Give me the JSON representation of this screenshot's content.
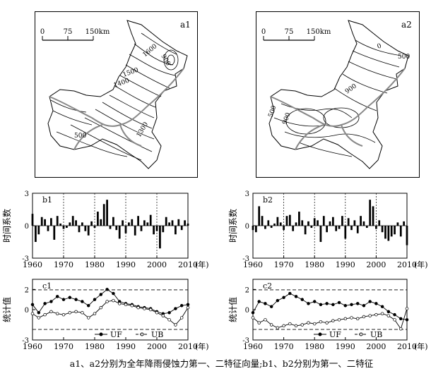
{
  "maps": [
    {
      "id": "a1",
      "scale": {
        "ticks": [
          "0",
          "75",
          "150km"
        ]
      },
      "contour_labels": [
        "1600",
        "1500",
        "1400",
        "900",
        "500",
        "1300"
      ]
    },
    {
      "id": "a2",
      "scale": {
        "ticks": [
          "0",
          "75",
          "150km"
        ]
      },
      "contour_labels": [
        "0",
        "500",
        "900",
        "500",
        "900"
      ]
    }
  ],
  "chart_data": [
    {
      "id": "b1",
      "type": "bar",
      "ylabel": "时间系数",
      "yticks": [
        "3",
        "0",
        "-3"
      ],
      "ylim": [
        -3,
        3
      ],
      "xticks": [
        "1960",
        "1970",
        "1980",
        "1990",
        "2000",
        "2010"
      ],
      "xunit": "(年)",
      "x": [
        1960,
        1961,
        1962,
        1963,
        1964,
        1965,
        1966,
        1967,
        1968,
        1969,
        1970,
        1971,
        1972,
        1973,
        1974,
        1975,
        1976,
        1977,
        1978,
        1979,
        1980,
        1981,
        1982,
        1983,
        1984,
        1985,
        1986,
        1987,
        1988,
        1989,
        1990,
        1991,
        1992,
        1993,
        1994,
        1995,
        1996,
        1997,
        1998,
        1999,
        2000,
        2001,
        2002,
        2003,
        2004,
        2005,
        2006,
        2007,
        2008,
        2009,
        2010
      ],
      "values": [
        1.1,
        -1.5,
        -0.8,
        0.8,
        0.6,
        -0.5,
        0.7,
        -1.3,
        0.9,
        0.2,
        -0.3,
        -0.2,
        0.3,
        0.9,
        0.5,
        -0.6,
        0.3,
        -0.5,
        -0.9,
        0.4,
        -0.2,
        1.3,
        0.6,
        2.0,
        2.4,
        -0.3,
        0.8,
        -0.4,
        -1.2,
        0.5,
        -0.7,
        0.3,
        0.6,
        -0.9,
        0.9,
        -0.5,
        0.5,
        0.3,
        1.0,
        -0.8,
        -0.5,
        -2.1,
        -0.6,
        0.8,
        0.3,
        0.5,
        -0.8,
        0.6,
        -0.4,
        0.5,
        0.2
      ]
    },
    {
      "id": "b2",
      "type": "bar",
      "ylabel": "时间系数",
      "yticks": [
        "3",
        "0",
        "-3"
      ],
      "ylim": [
        -3,
        3
      ],
      "xticks": [
        "1960",
        "1970",
        "1980",
        "1990",
        "2000",
        "2010"
      ],
      "xunit": "(年)",
      "x": [
        1960,
        1961,
        1962,
        1963,
        1964,
        1965,
        1966,
        1967,
        1968,
        1969,
        1970,
        1971,
        1972,
        1973,
        1974,
        1975,
        1976,
        1977,
        1978,
        1979,
        1980,
        1981,
        1982,
        1983,
        1984,
        1985,
        1986,
        1987,
        1988,
        1989,
        1990,
        1991,
        1992,
        1993,
        1994,
        1995,
        1996,
        1997,
        1998,
        1999,
        2000,
        2001,
        2002,
        2003,
        2004,
        2005,
        2006,
        2007,
        2008,
        2009,
        2010
      ],
      "values": [
        -0.4,
        -0.6,
        1.8,
        0.9,
        -0.3,
        0.5,
        -0.2,
        0.2,
        0.8,
        0.3,
        -0.4,
        0.9,
        1.0,
        -0.5,
        0.3,
        1.3,
        0.5,
        -0.8,
        0.4,
        -0.2,
        0.7,
        0.5,
        -1.5,
        0.9,
        -0.6,
        0.4,
        0.8,
        -0.5,
        -0.3,
        0.9,
        -1.2,
        0.7,
        -0.4,
        0.5,
        -0.7,
        0.9,
        0.4,
        -0.2,
        2.4,
        1.8,
        -0.3,
        0.5,
        -0.6,
        -1.2,
        -1.4,
        -1.0,
        -0.8,
        0.3,
        -1.0,
        0.4,
        -1.8
      ]
    },
    {
      "id": "c1",
      "type": "line",
      "ylabel": "统计值",
      "yticks": [
        "2",
        "0",
        "-3"
      ],
      "ylim": [
        -3,
        3
      ],
      "significance": [
        1.96,
        -1.96
      ],
      "xticks": [
        "1960",
        "1970",
        "1980",
        "1990",
        "2000",
        "2010"
      ],
      "xunit": "(年)",
      "legend": [
        "UF",
        "UB"
      ],
      "series": [
        {
          "name": "UF",
          "x": [
            1960,
            1962,
            1964,
            1966,
            1968,
            1970,
            1972,
            1974,
            1976,
            1978,
            1980,
            1982,
            1984,
            1986,
            1988,
            1990,
            1992,
            1994,
            1996,
            1998,
            2000,
            2002,
            2004,
            2006,
            2008,
            2010
          ],
          "values": [
            0.5,
            -0.3,
            0.6,
            0.8,
            1.3,
            1.0,
            1.2,
            1.0,
            0.8,
            0.4,
            1.0,
            1.5,
            2.0,
            1.6,
            0.8,
            0.6,
            0.5,
            0.3,
            0.2,
            0.1,
            -0.2,
            -0.4,
            -0.3,
            0.1,
            0.4,
            0.5
          ]
        },
        {
          "name": "UB",
          "x": [
            1960,
            1962,
            1964,
            1966,
            1968,
            1970,
            1972,
            1974,
            1976,
            1978,
            1980,
            1982,
            1984,
            1986,
            1988,
            1990,
            1992,
            1994,
            1996,
            1998,
            2000,
            2002,
            2004,
            2006,
            2008,
            2010
          ],
          "values": [
            -0.4,
            -0.8,
            -0.5,
            -0.2,
            -0.4,
            -0.5,
            -0.3,
            -0.2,
            -0.3,
            -0.8,
            -0.4,
            0.2,
            0.8,
            0.9,
            0.6,
            0.5,
            0.4,
            0.2,
            0.1,
            0.0,
            -0.3,
            -0.6,
            -1.0,
            -1.5,
            -0.8,
            0.2
          ]
        }
      ]
    },
    {
      "id": "c2",
      "type": "line",
      "ylabel": "统计值",
      "yticks": [
        "2",
        "0",
        "-3"
      ],
      "ylim": [
        -3,
        3
      ],
      "significance": [
        1.96,
        -1.96
      ],
      "xticks": [
        "1960",
        "1970",
        "1980",
        "1990",
        "2000",
        "2010"
      ],
      "xunit": "(年)",
      "legend": [
        "UF",
        "UB"
      ],
      "series": [
        {
          "name": "UF",
          "x": [
            1960,
            1962,
            1964,
            1966,
            1968,
            1970,
            1972,
            1974,
            1976,
            1978,
            1980,
            1982,
            1984,
            1986,
            1988,
            1990,
            1992,
            1994,
            1996,
            1998,
            2000,
            2002,
            2004,
            2006,
            2008,
            2010
          ],
          "values": [
            -0.3,
            0.8,
            0.6,
            0.3,
            0.9,
            1.2,
            1.6,
            1.3,
            1.0,
            0.6,
            0.8,
            0.5,
            0.6,
            0.5,
            0.7,
            0.4,
            0.5,
            0.6,
            0.4,
            0.8,
            0.6,
            0.3,
            -0.2,
            -0.5,
            -0.9,
            -1.0
          ]
        },
        {
          "name": "UB",
          "x": [
            1960,
            1962,
            1964,
            1966,
            1968,
            1970,
            1972,
            1974,
            1976,
            1978,
            1980,
            1982,
            1984,
            1986,
            1988,
            1990,
            1992,
            1994,
            1996,
            1998,
            2000,
            2002,
            2004,
            2006,
            2008,
            2010
          ],
          "values": [
            -0.8,
            -1.3,
            -1.0,
            -1.5,
            -1.8,
            -1.6,
            -1.4,
            -1.6,
            -1.5,
            -1.3,
            -1.4,
            -1.2,
            -1.3,
            -1.1,
            -1.0,
            -0.9,
            -0.8,
            -0.9,
            -0.7,
            -0.6,
            -0.5,
            -0.4,
            -0.6,
            -1.0,
            -1.9,
            0.1
          ]
        }
      ]
    }
  ],
  "caption": "a1、a2分别为全年降雨侵蚀力第一、二特征向量;b1、b2分别为第一、二特征"
}
